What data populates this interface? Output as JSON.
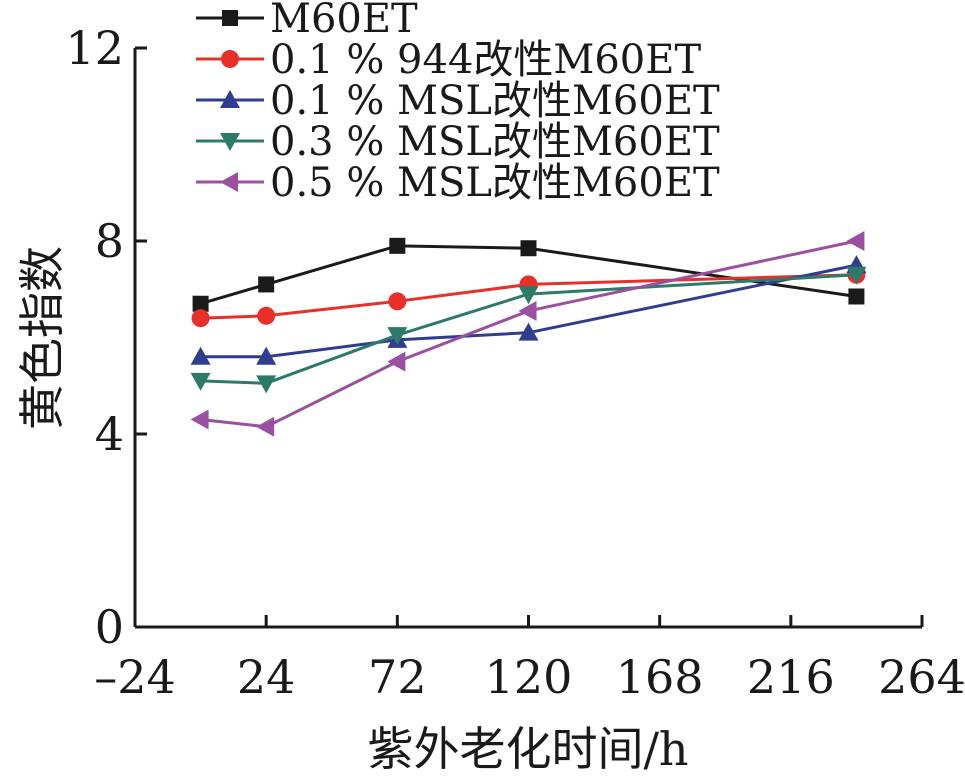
{
  "chart_data": {
    "type": "line",
    "xlabel": "紫外老化时间/h",
    "ylabel": "黄色指数",
    "xlim": [
      -24,
      264
    ],
    "ylim": [
      0,
      12
    ],
    "x_ticks": [
      -24,
      24,
      72,
      120,
      168,
      216,
      264
    ],
    "y_ticks": [
      0,
      4,
      8,
      12
    ],
    "x_tick_labels": [
      "–24",
      "24",
      "72",
      "120",
      "168",
      "216",
      "264"
    ],
    "y_tick_labels": [
      "0",
      "4",
      "8",
      "12"
    ],
    "x": [
      0,
      24,
      72,
      120,
      240
    ],
    "legend_position": "top-left",
    "grid": false,
    "series": [
      {
        "name": "M60ET",
        "values": [
          6.7,
          7.1,
          7.9,
          7.85,
          6.85
        ],
        "color": "#1a1a1a",
        "marker": "square"
      },
      {
        "name": "0.1 % 944改性M60ET",
        "values": [
          6.4,
          6.45,
          6.75,
          7.1,
          7.3
        ],
        "color": "#e8302a",
        "marker": "circle"
      },
      {
        "name": "0.1 % MSL改性M60ET",
        "values": [
          5.6,
          5.6,
          5.95,
          6.1,
          7.5
        ],
        "color": "#2f3d8f",
        "marker": "triangle-up"
      },
      {
        "name": "0.3 % MSL改性M60ET",
        "values": [
          5.1,
          5.05,
          6.05,
          6.9,
          7.3
        ],
        "color": "#2d7a6a",
        "marker": "triangle-down"
      },
      {
        "name": "0.5 % MSL改性M60ET",
        "values": [
          4.3,
          4.15,
          5.5,
          6.55,
          8.0
        ],
        "color": "#9b4fa0",
        "marker": "triangle-left"
      }
    ]
  }
}
